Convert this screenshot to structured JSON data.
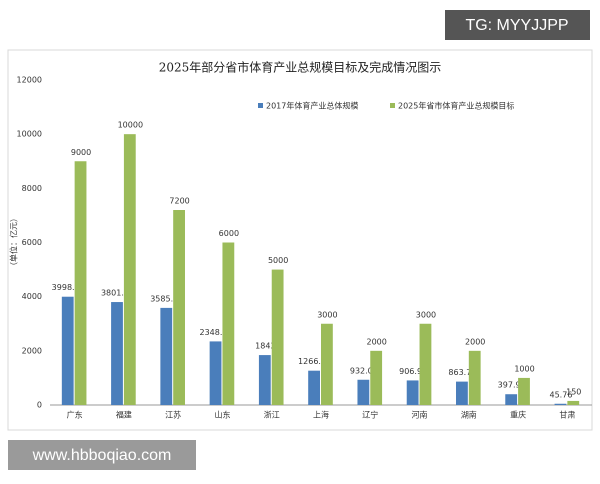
{
  "chart_data": {
    "type": "bar",
    "title": "2025年部分省市体育产业总规模目标及完成情况图示",
    "y_label": "（单位：亿元）",
    "categories": [
      "广东",
      "福建",
      "江苏",
      "山东",
      "浙江",
      "上海",
      "辽宁",
      "河南",
      "湖南",
      "重庆",
      "甘肃"
    ],
    "series": [
      {
        "name": "2017年体育产业总体规模",
        "color": "#4a7ebb",
        "values": [
          3998.03,
          3801.41,
          3585.64,
          2348.01,
          1843,
          1266.93,
          932.09,
          906.99,
          863.74,
          397.91,
          45.76
        ]
      },
      {
        "name": "2025年省市体育产业总规模目标",
        "color": "#9bbb59",
        "values": [
          9000,
          10000,
          7200,
          6000,
          5000,
          3000,
          2000,
          3000,
          2000,
          1000,
          150
        ]
      }
    ],
    "ylim": [
      0,
      12000
    ],
    "yticks": [
      0,
      2000,
      4000,
      6000,
      8000,
      10000,
      12000
    ],
    "grid": false,
    "legend": "top"
  },
  "watermarks": [
    "TG: MYYJJPP",
    "www.hbboqiao.com"
  ]
}
